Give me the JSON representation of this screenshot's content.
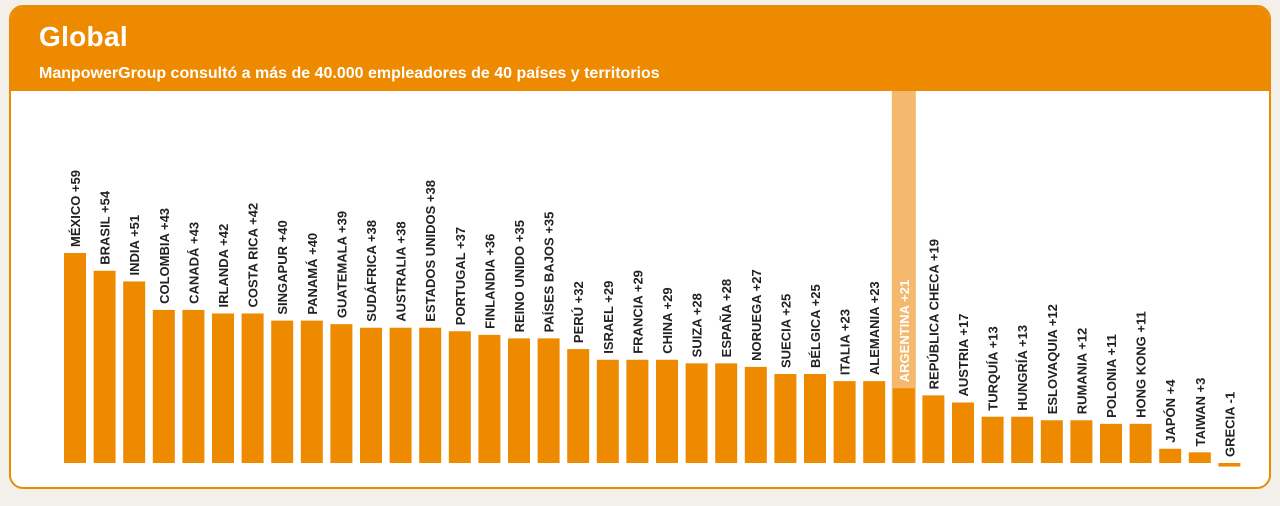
{
  "header": {
    "title": "Global",
    "subtitle": "ManpowerGroup consultó a más de 40.000 empleadores de 40 países y territorios"
  },
  "colors": {
    "brand": "#ee8a00",
    "bar": "#ee8a00",
    "highlight": "#f4b96f",
    "background": "#ffffff"
  },
  "chart_data": {
    "type": "bar",
    "title": "Global",
    "subtitle": "ManpowerGroup consultó a más de 40.000 empleadores de 40 países y territorios",
    "categories": [
      "MÉXICO",
      "BRASIL",
      "INDIA",
      "COLOMBIA",
      "CANADÁ",
      "IRLANDA",
      "COSTA RICA",
      "SINGAPUR",
      "PANAMÁ",
      "GUATEMALA",
      "SUDÁFRICA",
      "AUSTRALIA",
      "ESTADOS UNIDOS",
      "PORTUGAL",
      "FINLANDIA",
      "REINO UNIDO",
      "PAÍSES BAJOS",
      "PERÚ",
      "ISRAEL",
      "FRANCIA",
      "CHINA",
      "SUIZA",
      "ESPAÑA",
      "NORUEGA",
      "SUECIA",
      "BÉLGICA",
      "ITALIA",
      "ALEMANIA",
      "ARGENTINA",
      "REPÚBLICA CHECA",
      "AUSTRIA",
      "TURQUÍA",
      "HUNGRÍA",
      "ESLOVAQUIA",
      "RUMANIA",
      "POLONIA",
      "HONG KONG",
      "JAPÓN",
      "TAIWAN",
      "GRECIA"
    ],
    "values": [
      59,
      54,
      51,
      43,
      43,
      42,
      42,
      40,
      40,
      39,
      38,
      38,
      38,
      37,
      36,
      35,
      35,
      32,
      29,
      29,
      29,
      28,
      28,
      27,
      25,
      25,
      23,
      23,
      21,
      19,
      17,
      13,
      13,
      12,
      12,
      11,
      11,
      4,
      3,
      -1
    ],
    "labels": [
      "MÉXICO +59",
      "BRASIL +54",
      "INDIA +51",
      "COLOMBIA +43",
      "CANADÁ +43",
      "IRLANDA +42",
      "COSTA RICA +42",
      "SINGAPUR +40",
      "PANAMÁ +40",
      "GUATEMALA +39",
      "SUDÁFRICA +38",
      "AUSTRALIA +38",
      "ESTADOS UNIDOS +38",
      "PORTUGAL +37",
      "FINLANDIA +36",
      "REINO UNIDO +35",
      "PAÍSES BAJOS +35",
      "PERÚ +32",
      "ISRAEL +29",
      "FRANCIA +29",
      "CHINA +29",
      "SUIZA +28",
      "ESPAÑA +28",
      "NORUEGA +27",
      "SUECIA +25",
      "BÉLGICA +25",
      "ITALIA +23",
      "ALEMANIA +23",
      "ARGENTINA +21",
      "REPÚBLICA CHECA +19",
      "AUSTRIA +17",
      "TURQUÍA +13",
      "HUNGRÍA +13",
      "ESLOVAQUIA +12",
      "RUMANIA +12",
      "POLONIA +11",
      "HONG KONG +11",
      "JAPÓN +4",
      "TAIWAN +3",
      "GRECIA -1"
    ],
    "highlight": "ARGENTINA",
    "ylim": [
      -1,
      59
    ],
    "grid": false,
    "legend": "none"
  }
}
